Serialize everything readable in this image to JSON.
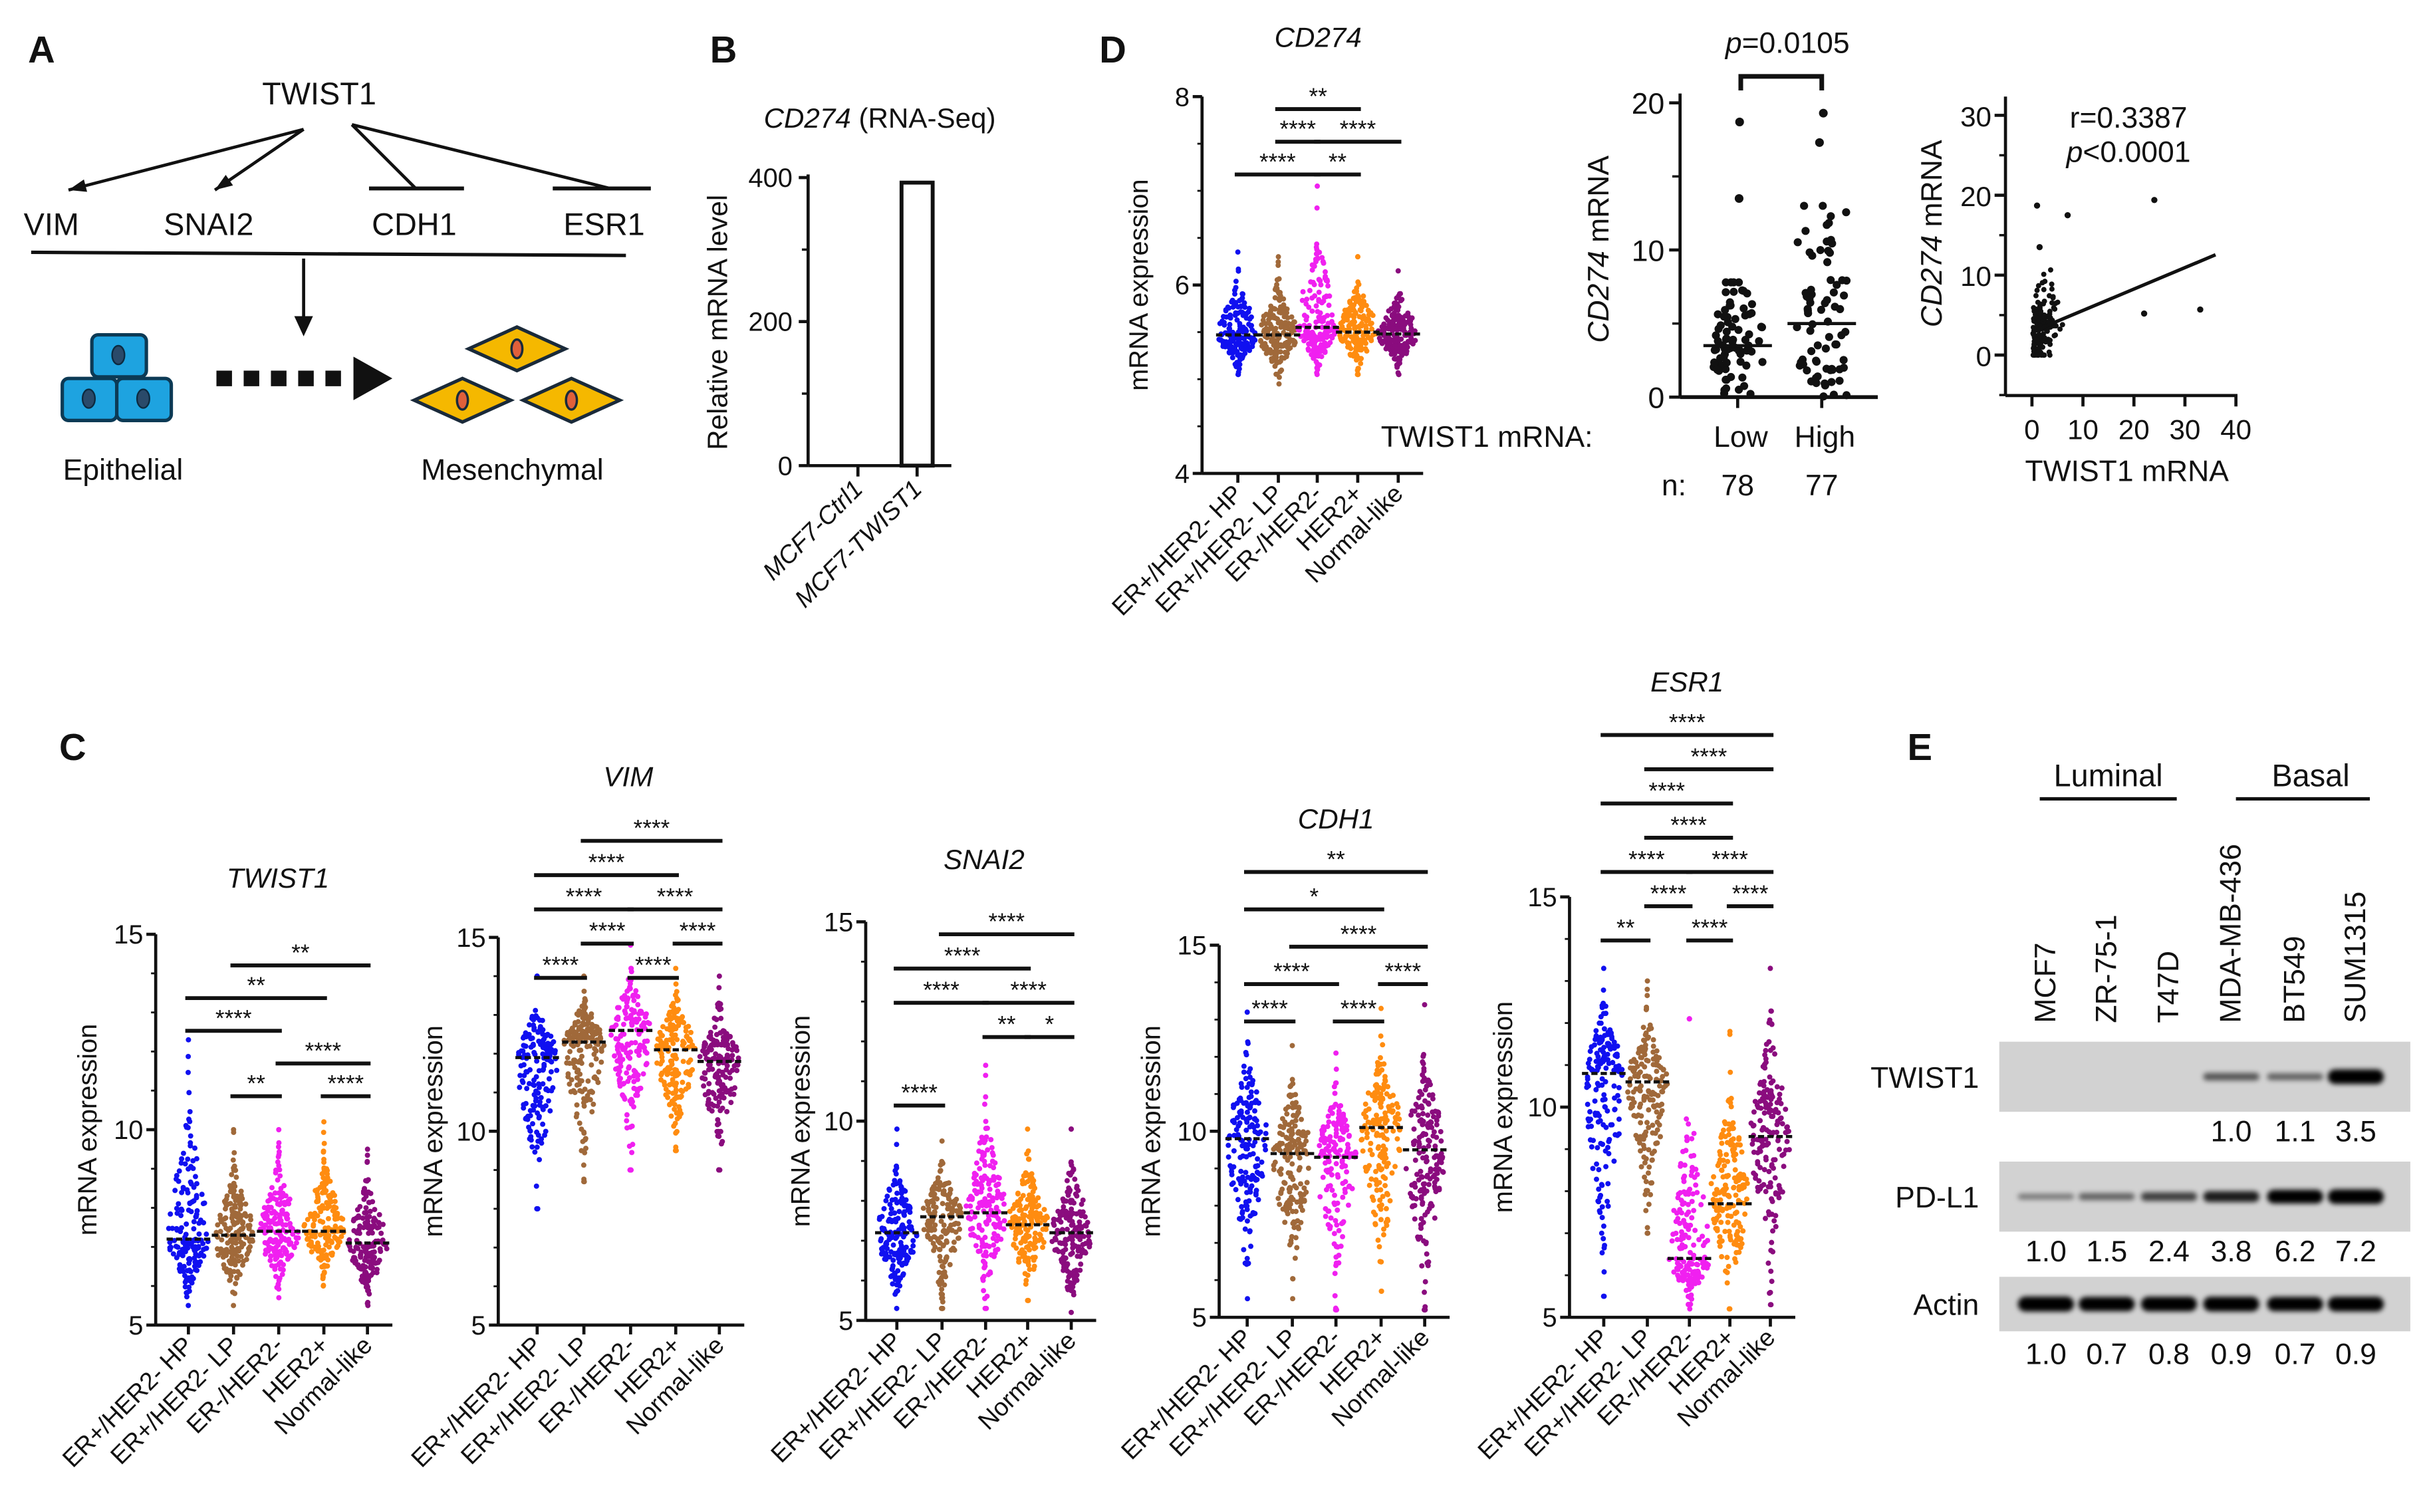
{
  "colors": {
    "hp": "#1010f0",
    "lp": "#a0693a",
    "erneg": "#f020f0",
    "her2": "#ff8c10",
    "normal": "#8a0c7e",
    "cell_epi": "#1ea3e0",
    "cell_mes": "#f5b800",
    "nucleus_mes": "#e0603a",
    "ink": "#111111",
    "blot_bg": "#d2d2d2"
  },
  "panelA": {
    "letter": "A",
    "regulator": "TWIST1",
    "targets": [
      "VIM",
      "SNAI2",
      "CDH1",
      "ESR1"
    ],
    "target_effects": [
      "activates",
      "activates",
      "represses",
      "represses"
    ],
    "epithelial": "Epithelial",
    "mesenchymal": "Mesenchymal"
  },
  "panelB": {
    "letter": "B",
    "chart_title_italic": "CD274",
    "chart_title_rest": " (RNA-Seq)",
    "ylabel": "Relative mRNA level"
  },
  "panelC": {
    "letter": "C"
  },
  "panelD": {
    "letter": "D",
    "group_label": "TWIST1 mRNA:",
    "n_label": "n:",
    "p_symbol": "p",
    "p_value": "=0.0105",
    "r_text": "r=0.3387",
    "p2_symbol": "p",
    "p2_value": "<0.0001"
  },
  "panelE": {
    "letter": "E",
    "groups": [
      "Luminal",
      "Basal"
    ],
    "lanes": [
      "MCF7",
      "ZR-75-1",
      "T47D",
      "MDA-MB-436",
      "BT549",
      "SUM1315"
    ],
    "rows": [
      {
        "protein": "TWIST1",
        "band_intensity": [
          0,
          0,
          0,
          0.35,
          0.3,
          0.92
        ],
        "quant": [
          "",
          "",
          "",
          "1.0",
          "1.1",
          "3.5"
        ]
      },
      {
        "protein": "PD-L1",
        "band_intensity": [
          0.2,
          0.3,
          0.45,
          0.62,
          0.85,
          0.92
        ],
        "quant": [
          "1.0",
          "1.5",
          "2.4",
          "3.8",
          "6.2",
          "7.2"
        ]
      },
      {
        "protein": "Actin",
        "band_intensity": [
          0.95,
          0.9,
          0.92,
          0.93,
          0.9,
          0.93
        ],
        "quant": [
          "1.0",
          "0.7",
          "0.8",
          "0.9",
          "0.7",
          "0.9"
        ]
      }
    ]
  },
  "chart_data": [
    {
      "id": "B",
      "type": "bar",
      "title": "CD274 (RNA-Seq)",
      "ylabel": "Relative mRNA level",
      "ylim": [
        0,
        400
      ],
      "yticks": [
        "0",
        "200",
        "400"
      ],
      "categories": [
        "MCF7-Ctrl1",
        "MCF7-TWIST1"
      ],
      "values": [
        0,
        393
      ]
    },
    {
      "id": "C-TWIST1",
      "type": "scatter",
      "title": "TWIST1",
      "ylabel": "mRNA expression",
      "ylim": [
        5,
        15
      ],
      "yticks": [
        "5",
        "10",
        "15"
      ],
      "categories": [
        "ER+/HER2- HP",
        "ER+/HER2- LP",
        "ER-/HER2-",
        "HER2+",
        "Normal-like"
      ],
      "groups": [
        {
          "median": 7.2,
          "min": 5.5,
          "max": 12.3
        },
        {
          "median": 7.3,
          "min": 5.5,
          "max": 10
        },
        {
          "median": 7.4,
          "min": 5.7,
          "max": 10
        },
        {
          "median": 7.4,
          "min": 6,
          "max": 10.2
        },
        {
          "median": 7.1,
          "min": 5.5,
          "max": 9.5
        }
      ],
      "significance": [
        {
          "a": 1,
          "b": 4,
          "label": "**",
          "row": 0
        },
        {
          "a": 0,
          "b": 3,
          "label": "**",
          "row": 1
        },
        {
          "a": 0,
          "b": 2,
          "label": "****",
          "row": 2
        },
        {
          "a": 2,
          "b": 4,
          "label": "****",
          "row": 3
        },
        {
          "a": 1,
          "b": 2,
          "label": "**",
          "row": 4
        },
        {
          "a": 3,
          "b": 4,
          "label": "****",
          "row": 4
        }
      ]
    },
    {
      "id": "C-VIM",
      "type": "scatter",
      "title": "VIM",
      "ylabel": "mRNA expression",
      "ylim": [
        5,
        15
      ],
      "yticks": [
        "5",
        "10",
        "15"
      ],
      "categories": [
        "ER+/HER2- HP",
        "ER+/HER2- LP",
        "ER-/HER2-",
        "HER2+",
        "Normal-like"
      ],
      "groups": [
        {
          "median": 11.9,
          "min": 8,
          "max": 14
        },
        {
          "median": 12.3,
          "min": 8.7,
          "max": 14
        },
        {
          "median": 12.6,
          "min": 9,
          "max": 14.8
        },
        {
          "median": 12.1,
          "min": 9.5,
          "max": 14.2
        },
        {
          "median": 11.8,
          "min": 9,
          "max": 14
        }
      ],
      "significance": [
        {
          "a": 1,
          "b": 4,
          "label": "****",
          "row": 0
        },
        {
          "a": 0,
          "b": 3,
          "label": "****",
          "row": 1
        },
        {
          "a": 0,
          "b": 2,
          "label": "****",
          "row": 2
        },
        {
          "a": 2,
          "b": 4,
          "label": "****",
          "row": 2
        },
        {
          "a": 1,
          "b": 2,
          "label": "****",
          "row": 3
        },
        {
          "a": 3,
          "b": 4,
          "label": "****",
          "row": 3
        },
        {
          "a": 0,
          "b": 1,
          "label": "****",
          "row": 4
        },
        {
          "a": 2,
          "b": 3,
          "label": "****",
          "row": 4
        }
      ]
    },
    {
      "id": "C-SNAI2",
      "type": "scatter",
      "title": "SNAI2",
      "ylabel": "mRNA expression",
      "ylim": [
        5,
        15
      ],
      "yticks": [
        "5",
        "10",
        "15"
      ],
      "categories": [
        "ER+/HER2- HP",
        "ER+/HER2- LP",
        "ER-/HER2-",
        "HER2+",
        "Normal-like"
      ],
      "groups": [
        {
          "median": 7.2,
          "min": 5.3,
          "max": 9.8
        },
        {
          "median": 7.6,
          "min": 5.3,
          "max": 9.5
        },
        {
          "median": 7.7,
          "min": 5.3,
          "max": 11.4
        },
        {
          "median": 7.4,
          "min": 5.5,
          "max": 9.8
        },
        {
          "median": 7.2,
          "min": 5.2,
          "max": 9.8
        }
      ],
      "significance": [
        {
          "a": 1,
          "b": 4,
          "label": "****",
          "row": 0
        },
        {
          "a": 0,
          "b": 3,
          "label": "****",
          "row": 1
        },
        {
          "a": 0,
          "b": 2,
          "label": "****",
          "row": 2
        },
        {
          "a": 2,
          "b": 4,
          "label": "****",
          "row": 2
        },
        {
          "a": 2,
          "b": 3,
          "label": "**",
          "row": 3
        },
        {
          "a": 3,
          "b": 4,
          "label": "*",
          "row": 3
        },
        {
          "a": 0,
          "b": 1,
          "label": "****",
          "row": 5
        }
      ]
    },
    {
      "id": "C-CDH1",
      "type": "scatter",
      "title": "CDH1",
      "ylabel": "mRNA expression",
      "ylim": [
        5,
        15
      ],
      "yticks": [
        "5",
        "10",
        "15"
      ],
      "categories": [
        "ER+/HER2- HP",
        "ER+/HER2- LP",
        "ER-/HER2-",
        "HER2+",
        "Normal-like"
      ],
      "groups": [
        {
          "median": 9.8,
          "min": 5.5,
          "max": 13.2
        },
        {
          "median": 9.4,
          "min": 5.5,
          "max": 12.3
        },
        {
          "median": 9.3,
          "min": 5.2,
          "max": 12.1
        },
        {
          "median": 10.1,
          "min": 5.7,
          "max": 13.3
        },
        {
          "median": 9.5,
          "min": 5.2,
          "max": 13.4
        }
      ],
      "significance": [
        {
          "a": 0,
          "b": 4,
          "label": "**",
          "row": 0
        },
        {
          "a": 0,
          "b": 3,
          "label": "*",
          "row": 1
        },
        {
          "a": 1,
          "b": 4,
          "label": "****",
          "row": 2
        },
        {
          "a": 0,
          "b": 2,
          "label": "****",
          "row": 3
        },
        {
          "a": 3,
          "b": 4,
          "label": "****",
          "row": 3
        },
        {
          "a": 0,
          "b": 1,
          "label": "****",
          "row": 4
        },
        {
          "a": 2,
          "b": 3,
          "label": "****",
          "row": 4
        }
      ]
    },
    {
      "id": "C-ESR1",
      "type": "scatter",
      "title": "ESR1",
      "ylabel": "mRNA expression",
      "ylim": [
        5,
        15
      ],
      "yticks": [
        "5",
        "10",
        "15"
      ],
      "categories": [
        "ER+/HER2- HP",
        "ER+/HER2- LP",
        "ER-/HER2-",
        "HER2+",
        "Normal-like"
      ],
      "groups": [
        {
          "median": 10.8,
          "min": 5.5,
          "max": 13.3
        },
        {
          "median": 10.6,
          "min": 7,
          "max": 13
        },
        {
          "median": 6.4,
          "min": 5.2,
          "max": 12.1
        },
        {
          "median": 7.7,
          "min": 5.2,
          "max": 11.8
        },
        {
          "median": 9.3,
          "min": 5.3,
          "max": 13.3
        }
      ],
      "significance": [
        {
          "a": 0,
          "b": 4,
          "label": "****",
          "row": 0
        },
        {
          "a": 1,
          "b": 4,
          "label": "****",
          "row": 1
        },
        {
          "a": 0,
          "b": 3,
          "label": "****",
          "row": 2
        },
        {
          "a": 1,
          "b": 3,
          "label": "****",
          "row": 3
        },
        {
          "a": 0,
          "b": 2,
          "label": "****",
          "row": 4
        },
        {
          "a": 2,
          "b": 4,
          "label": "****",
          "row": 4
        },
        {
          "a": 1,
          "b": 2,
          "label": "****",
          "row": 5
        },
        {
          "a": 3,
          "b": 4,
          "label": "****",
          "row": 5
        },
        {
          "a": 0,
          "b": 1,
          "label": "**",
          "row": 6
        },
        {
          "a": 2,
          "b": 3,
          "label": "****",
          "row": 6
        }
      ]
    },
    {
      "id": "D-CD274",
      "type": "scatter",
      "title": "CD274",
      "ylabel": "mRNA expression",
      "ylim": [
        4,
        8
      ],
      "yticks": [
        "4",
        "6",
        "8"
      ],
      "categories": [
        "ER+/HER2- HP",
        "ER+/HER2- LP",
        "ER-/HER2-",
        "HER2+",
        "Normal-like"
      ],
      "groups": [
        {
          "median": 5.47,
          "min": 5.05,
          "max": 6.35
        },
        {
          "median": 5.47,
          "min": 4.95,
          "max": 6.3
        },
        {
          "median": 5.55,
          "min": 5.05,
          "max": 7.05
        },
        {
          "median": 5.5,
          "min": 5.05,
          "max": 6.3
        },
        {
          "median": 5.48,
          "min": 5.05,
          "max": 6.15
        }
      ],
      "significance": [
        {
          "a": 1,
          "b": 3,
          "label": "**",
          "row": 0
        },
        {
          "a": 1,
          "b": 2,
          "label": "****",
          "row": 1
        },
        {
          "a": 2,
          "b": 4,
          "label": "****",
          "row": 1
        },
        {
          "a": 0,
          "b": 2,
          "label": "****",
          "row": 2
        },
        {
          "a": 2,
          "b": 3,
          "label": "**",
          "row": 2
        }
      ]
    },
    {
      "id": "D-LowHigh",
      "type": "scatter",
      "ylabel_italic": "CD274",
      "ylabel_rest": " mRNA",
      "ylim": [
        0,
        20
      ],
      "yticks": [
        "0",
        "10",
        "20"
      ],
      "categories": [
        "Low",
        "High"
      ],
      "n": [
        "78",
        "77"
      ],
      "groups": [
        {
          "median": 3.5,
          "min": 0,
          "max": 7.8,
          "outliers": [
            18.7,
            13.5
          ]
        },
        {
          "median": 5,
          "min": 0,
          "max": 13,
          "outliers": [
            19.3,
            17.3
          ]
        }
      ],
      "p_value": "p=0.0105"
    },
    {
      "id": "D-correlation",
      "type": "scatter",
      "xlabel": "TWIST1 mRNA",
      "ylabel_italic": "CD274",
      "ylabel_rest": " mRNA",
      "xlim": [
        0,
        40
      ],
      "ylim": [
        -5,
        30
      ],
      "xticks": [
        "0",
        "10",
        "20",
        "30",
        "40"
      ],
      "yticks": [
        "0",
        "10",
        "20",
        "30"
      ],
      "r": 0.3387,
      "p": "<0.0001",
      "fit": {
        "slope": 0.268,
        "intercept": 2.9,
        "x_range": [
          0.5,
          36
        ]
      },
      "outliers": [
        [
          1,
          18.7
        ],
        [
          7,
          17.5
        ],
        [
          24,
          19.4
        ],
        [
          22,
          5.2
        ],
        [
          33,
          5.7
        ],
        [
          1.5,
          13.5
        ]
      ]
    }
  ]
}
